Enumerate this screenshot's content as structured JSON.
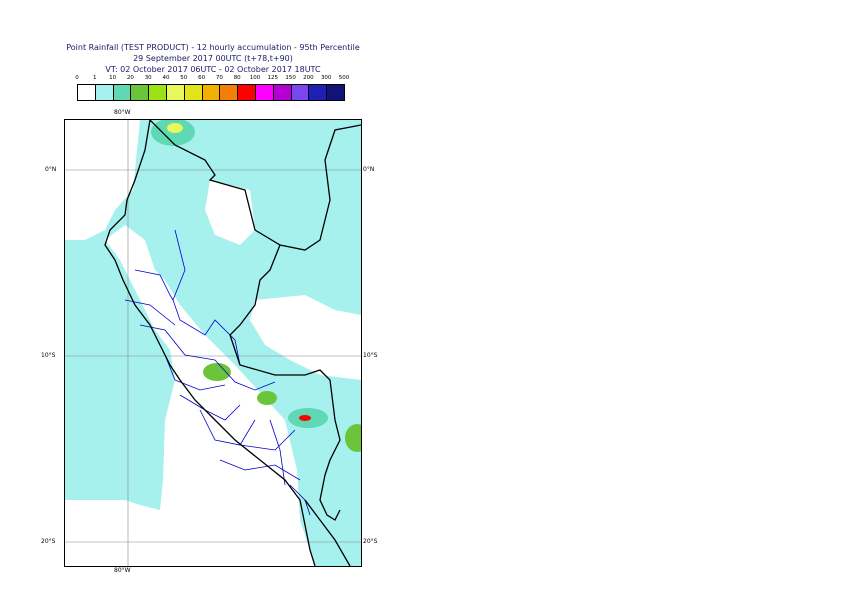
{
  "title": {
    "line1": "Point Rainfall (TEST PRODUCT) - 12 hourly accumulation - 95th Percentile",
    "line2": "29 September 2017 00UTC (t+78,t+90)",
    "line3": "VT: 02 October 2017 06UTC - 02 October 2017 18UTC"
  },
  "legend": {
    "thresholds": [
      "0",
      "1",
      "10",
      "20",
      "30",
      "40",
      "50",
      "60",
      "70",
      "80",
      "100",
      "125",
      "150",
      "200",
      "300",
      "500"
    ],
    "colors": [
      "#ffffff",
      "#a6f0ee",
      "#5fd8b4",
      "#6cc43a",
      "#9de216",
      "#e8f75a",
      "#e3e31a",
      "#f2b100",
      "#f37e0a",
      "#ff0000",
      "#ff00ff",
      "#b400d2",
      "#7a46f0",
      "#1f1fb4",
      "#12127a"
    ]
  },
  "map": {
    "region": "Peru",
    "lon_labels_top": [
      "80°W"
    ],
    "lon_labels_bottom": [
      "80°W"
    ],
    "lat_labels_left": [
      "0°N",
      "10°S",
      "20°S"
    ],
    "lat_labels_right": [
      "0°N",
      "10°S",
      "20°S"
    ],
    "colors": {
      "sea": "#ffffff",
      "rain_low": "#a6f0ee",
      "rain_mid": "#5fd8b4",
      "rain_green": "#6cc43a",
      "rain_yellow": "#e8f75a",
      "rain_red": "#ff0000",
      "country_border": "#000000",
      "region_border": "#0000cc",
      "grid": "#888888"
    },
    "icons": [
      "rainfall-colour-scale",
      "country-borders",
      "region-borders",
      "lat-lon-grid"
    ]
  }
}
